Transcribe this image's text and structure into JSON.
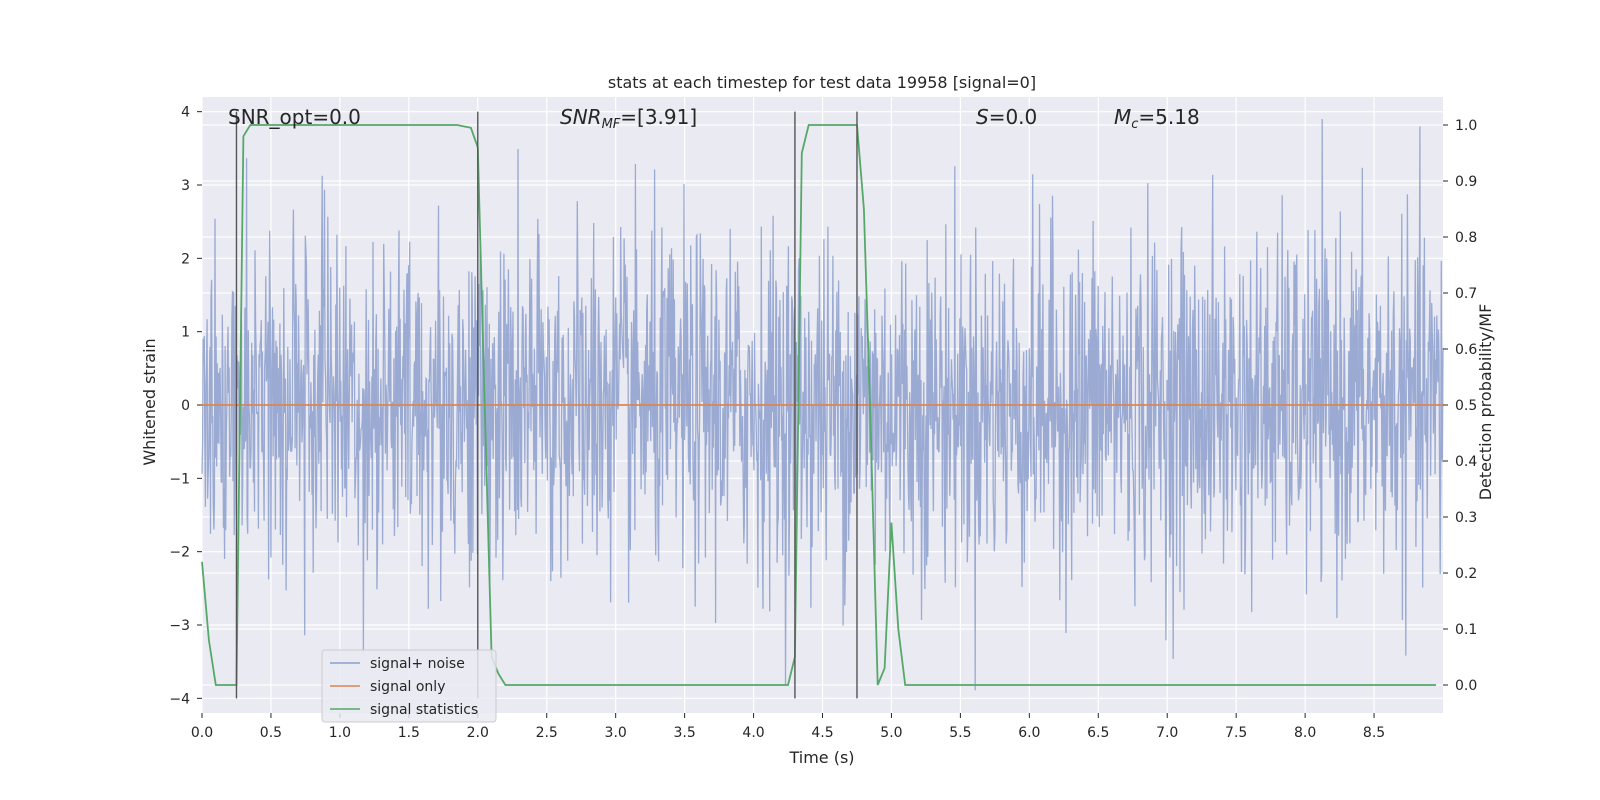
{
  "chart_data": {
    "type": "line",
    "title": "stats at each timestep for test data 19958 [signal=0]",
    "xlabel": "Time (s)",
    "ylabel_left": "Whitened strain",
    "ylabel_right": "Detection probability/MF",
    "xlim": [
      0.0,
      9.0
    ],
    "ylim_left": [
      -4.2,
      4.2
    ],
    "ylim_right": [
      -0.05,
      1.05
    ],
    "xticks": [
      0.0,
      0.5,
      1.0,
      1.5,
      2.0,
      2.5,
      3.0,
      3.5,
      4.0,
      4.5,
      5.0,
      5.5,
      6.0,
      6.5,
      7.0,
      7.5,
      8.0,
      8.5
    ],
    "xtick_labels": [
      "0.0",
      "0.5",
      "1.0",
      "1.5",
      "2.0",
      "2.5",
      "3.0",
      "3.5",
      "4.0",
      "4.5",
      "5.0",
      "5.5",
      "6.0",
      "6.5",
      "7.0",
      "7.5",
      "8.0",
      "8.5"
    ],
    "yticks_left": [
      -4,
      -3,
      -2,
      -1,
      0,
      1,
      2,
      3,
      4
    ],
    "ytick_labels_left": [
      "−4",
      "−3",
      "−2",
      "−1",
      "0",
      "1",
      "2",
      "3",
      "4"
    ],
    "yticks_right": [
      0.0,
      0.1,
      0.2,
      0.3,
      0.4,
      0.5,
      0.6,
      0.7,
      0.8,
      0.9,
      1.0
    ],
    "ytick_labels_right": [
      "0.0",
      "0.1",
      "0.2",
      "0.3",
      "0.4",
      "0.5",
      "0.6",
      "0.7",
      "0.8",
      "0.9",
      "1.0"
    ],
    "annotations": {
      "snr_opt": "SNR_opt=0.0",
      "snr_mf_label": "SNR",
      "snr_mf_sub": "MF",
      "snr_mf_value": "=[3.91]",
      "s_label": "S",
      "s_value": "=0.0",
      "mc_label": "M",
      "mc_sub": "c",
      "mc_value": "=5.18"
    },
    "noise": {
      "name": "signal+ noise",
      "color": "#8c9fcc",
      "amplitude_range": [
        -4.0,
        3.9
      ],
      "sigma": 1.15,
      "n_samples": 2200
    },
    "series": [
      {
        "name": "signal only",
        "color": "#dd8452",
        "axis": "left",
        "x": [
          0.0,
          9.0
        ],
        "y": [
          0.0,
          0.0
        ]
      },
      {
        "name": "signal statistics",
        "color": "#55a868",
        "axis": "right",
        "x": [
          0.0,
          0.05,
          0.1,
          0.2,
          0.25,
          0.3,
          0.35,
          0.5,
          1.0,
          1.5,
          1.85,
          1.95,
          2.0,
          2.05,
          2.1,
          2.15,
          2.2,
          2.5,
          3.0,
          3.5,
          4.0,
          4.25,
          4.3,
          4.35,
          4.4,
          4.6,
          4.75,
          4.8,
          4.85,
          4.9,
          4.95,
          5.0,
          5.05,
          5.1,
          5.5,
          6.0,
          7.0,
          8.0,
          8.95
        ],
        "y": [
          0.22,
          0.08,
          0.0,
          0.0,
          0.0,
          0.98,
          1.0,
          1.0,
          1.0,
          1.0,
          1.0,
          0.995,
          0.96,
          0.5,
          0.05,
          0.02,
          0.0,
          0.0,
          0.0,
          0.0,
          0.0,
          0.0,
          0.05,
          0.95,
          1.0,
          1.0,
          1.0,
          0.85,
          0.45,
          0.0,
          0.03,
          0.29,
          0.1,
          0.0,
          0.0,
          0.0,
          0.0,
          0.0,
          0.0
        ]
      }
    ],
    "vlines": [
      {
        "x": 0.25,
        "y_left": [
          -4.0,
          4.0
        ]
      },
      {
        "x": 2.0,
        "y_left": [
          -4.0,
          4.0
        ]
      },
      {
        "x": 4.3,
        "y_left": [
          -4.0,
          4.0
        ]
      },
      {
        "x": 4.75,
        "y_left": [
          -4.0,
          4.0
        ]
      }
    ],
    "legend": {
      "position": "lower-left",
      "entries": [
        "signal+ noise",
        "signal only",
        "signal statistics"
      ]
    },
    "colors": {
      "plot_bg": "#eaeaf2",
      "grid": "#ffffff",
      "vline": "#555555"
    }
  }
}
